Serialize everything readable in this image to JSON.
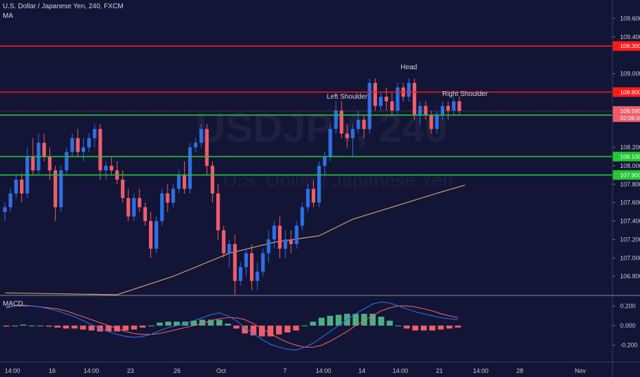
{
  "header": {
    "title": "U.S. Dollar / Japanese Yen, 240, FXCM",
    "indicator": "MA"
  },
  "macd_label": "MACD",
  "watermark": {
    "symbol": "USDJPY, 240",
    "name": "U.S. Dollar / Japanese Yen"
  },
  "colors": {
    "background": "#131536",
    "bull": "#2f6fe4",
    "bear": "#ef5d6a",
    "ma": "#c9a26a",
    "resistance": "#ff1a1a",
    "support": "#22c832",
    "macd_line": "#2f6fe4",
    "signal_line": "#ef5d6a",
    "hist_pos": "#4caf82",
    "hist_neg": "#ef5d6a"
  },
  "chart_data": [
    {
      "type": "candlestick",
      "title": "U.S. Dollar / Japanese Yen, 240, FXCM",
      "ylim": [
        106.6,
        109.8
      ],
      "y_ticks": [
        "109.600",
        "109.400",
        "109.000",
        "108.200",
        "108.000",
        "107.800",
        "107.600",
        "107.400",
        "107.200",
        "107.000",
        "106.800"
      ],
      "x_ticks": [
        "14:00",
        "16",
        "14:00",
        "23",
        "26",
        "Oct",
        "7",
        "14:00",
        "14",
        "14:00",
        "21",
        "14:00",
        "28",
        "Nov"
      ],
      "horizontal_levels": [
        {
          "value": 109.3,
          "label": "109.300",
          "color": "resistance"
        },
        {
          "value": 108.8,
          "label": "108.800",
          "color": "resistance"
        },
        {
          "value": 108.55,
          "label": "108.550",
          "color": "support"
        },
        {
          "value": 108.1,
          "label": "108.100",
          "color": "support"
        },
        {
          "value": 107.9,
          "label": "107.900",
          "color": "support"
        }
      ],
      "last_price": {
        "value": 108.595,
        "label": "108.595",
        "countdown": "02:06:04"
      },
      "annotations": [
        {
          "text": "Left Shoulder",
          "x": 61,
          "price": 108.73
        },
        {
          "text": "Head",
          "x": 72,
          "price": 109.05
        },
        {
          "text": "Right Shoulder",
          "x": 82,
          "price": 108.76
        }
      ],
      "ma_series": [
        {
          "x": 0,
          "y": 106.62
        },
        {
          "x": 20,
          "y": 106.6
        },
        {
          "x": 30,
          "y": 106.8
        },
        {
          "x": 40,
          "y": 107.05
        },
        {
          "x": 48,
          "y": 107.17
        },
        {
          "x": 56,
          "y": 107.24
        },
        {
          "x": 62,
          "y": 107.42
        },
        {
          "x": 70,
          "y": 107.57
        },
        {
          "x": 78,
          "y": 107.72
        },
        {
          "x": 82,
          "y": 107.79
        }
      ],
      "candles": [
        {
          "o": 107.5,
          "h": 107.6,
          "l": 107.4,
          "c": 107.55
        },
        {
          "o": 107.55,
          "h": 107.75,
          "l": 107.5,
          "c": 107.7
        },
        {
          "o": 107.7,
          "h": 107.9,
          "l": 107.65,
          "c": 107.85
        },
        {
          "o": 107.85,
          "h": 107.92,
          "l": 107.6,
          "c": 107.7
        },
        {
          "o": 107.7,
          "h": 108.2,
          "l": 107.65,
          "c": 108.1
        },
        {
          "o": 108.1,
          "h": 108.3,
          "l": 107.9,
          "c": 107.95
        },
        {
          "o": 107.95,
          "h": 108.35,
          "l": 107.9,
          "c": 108.25
        },
        {
          "o": 108.25,
          "h": 108.35,
          "l": 108.05,
          "c": 108.1
        },
        {
          "o": 108.1,
          "h": 108.2,
          "l": 107.85,
          "c": 107.95
        },
        {
          "o": 107.95,
          "h": 108.0,
          "l": 107.4,
          "c": 107.55
        },
        {
          "o": 107.55,
          "h": 108.0,
          "l": 107.5,
          "c": 107.95
        },
        {
          "o": 107.95,
          "h": 108.2,
          "l": 107.9,
          "c": 108.15
        },
        {
          "o": 108.15,
          "h": 108.35,
          "l": 108.1,
          "c": 108.3
        },
        {
          "o": 108.3,
          "h": 108.4,
          "l": 108.1,
          "c": 108.15
        },
        {
          "o": 108.15,
          "h": 108.3,
          "l": 108.05,
          "c": 108.2
        },
        {
          "o": 108.2,
          "h": 108.35,
          "l": 108.15,
          "c": 108.3
        },
        {
          "o": 108.3,
          "h": 108.45,
          "l": 108.2,
          "c": 108.4
        },
        {
          "o": 108.4,
          "h": 108.45,
          "l": 107.85,
          "c": 107.95
        },
        {
          "o": 107.95,
          "h": 108.05,
          "l": 107.85,
          "c": 108.0
        },
        {
          "o": 108.0,
          "h": 108.1,
          "l": 107.9,
          "c": 107.95
        },
        {
          "o": 107.95,
          "h": 108.05,
          "l": 107.8,
          "c": 107.85
        },
        {
          "o": 107.85,
          "h": 107.95,
          "l": 107.6,
          "c": 107.65
        },
        {
          "o": 107.65,
          "h": 107.75,
          "l": 107.4,
          "c": 107.45
        },
        {
          "o": 107.45,
          "h": 107.7,
          "l": 107.4,
          "c": 107.65
        },
        {
          "o": 107.65,
          "h": 107.75,
          "l": 107.5,
          "c": 107.55
        },
        {
          "o": 107.55,
          "h": 107.6,
          "l": 107.35,
          "c": 107.4
        },
        {
          "o": 107.4,
          "h": 107.5,
          "l": 107.0,
          "c": 107.1
        },
        {
          "o": 107.1,
          "h": 107.45,
          "l": 107.05,
          "c": 107.4
        },
        {
          "o": 107.4,
          "h": 107.75,
          "l": 107.35,
          "c": 107.7
        },
        {
          "o": 107.7,
          "h": 107.8,
          "l": 107.5,
          "c": 107.6
        },
        {
          "o": 107.6,
          "h": 107.8,
          "l": 107.55,
          "c": 107.75
        },
        {
          "o": 107.75,
          "h": 107.95,
          "l": 107.7,
          "c": 107.9
        },
        {
          "o": 107.9,
          "h": 108.05,
          "l": 107.7,
          "c": 107.75
        },
        {
          "o": 107.75,
          "h": 108.25,
          "l": 107.7,
          "c": 108.2
        },
        {
          "o": 108.2,
          "h": 108.3,
          "l": 108.15,
          "c": 108.25
        },
        {
          "o": 108.25,
          "h": 108.45,
          "l": 108.2,
          "c": 108.4
        },
        {
          "o": 108.4,
          "h": 108.45,
          "l": 107.9,
          "c": 108.0
        },
        {
          "o": 108.0,
          "h": 108.05,
          "l": 107.6,
          "c": 107.7
        },
        {
          "o": 107.7,
          "h": 107.8,
          "l": 107.2,
          "c": 107.3
        },
        {
          "o": 107.3,
          "h": 107.35,
          "l": 107.0,
          "c": 107.05
        },
        {
          "o": 107.05,
          "h": 107.2,
          "l": 106.9,
          "c": 107.15
        },
        {
          "o": 107.15,
          "h": 107.25,
          "l": 106.6,
          "c": 106.75
        },
        {
          "o": 106.75,
          "h": 106.95,
          "l": 106.7,
          "c": 106.9
        },
        {
          "o": 106.9,
          "h": 107.1,
          "l": 106.8,
          "c": 107.05
        },
        {
          "o": 107.05,
          "h": 107.15,
          "l": 106.65,
          "c": 106.75
        },
        {
          "o": 106.75,
          "h": 106.95,
          "l": 106.65,
          "c": 106.85
        },
        {
          "o": 106.85,
          "h": 107.1,
          "l": 106.8,
          "c": 107.05
        },
        {
          "o": 107.05,
          "h": 107.3,
          "l": 106.95,
          "c": 107.2
        },
        {
          "o": 107.2,
          "h": 107.4,
          "l": 107.1,
          "c": 107.35
        },
        {
          "o": 107.35,
          "h": 107.45,
          "l": 107.0,
          "c": 107.1
        },
        {
          "o": 107.1,
          "h": 107.3,
          "l": 107.0,
          "c": 107.2
        },
        {
          "o": 107.2,
          "h": 107.3,
          "l": 107.05,
          "c": 107.15
        },
        {
          "o": 107.15,
          "h": 107.4,
          "l": 107.1,
          "c": 107.35
        },
        {
          "o": 107.35,
          "h": 107.6,
          "l": 107.3,
          "c": 107.55
        },
        {
          "o": 107.55,
          "h": 107.8,
          "l": 107.5,
          "c": 107.75
        },
        {
          "o": 107.75,
          "h": 107.85,
          "l": 107.55,
          "c": 107.6
        },
        {
          "o": 107.6,
          "h": 108.05,
          "l": 107.55,
          "c": 108.0
        },
        {
          "o": 108.0,
          "h": 108.15,
          "l": 107.9,
          "c": 108.1
        },
        {
          "o": 108.1,
          "h": 108.45,
          "l": 108.05,
          "c": 108.4
        },
        {
          "o": 108.4,
          "h": 108.7,
          "l": 108.35,
          "c": 108.6
        },
        {
          "o": 108.6,
          "h": 108.7,
          "l": 108.3,
          "c": 108.35
        },
        {
          "o": 108.35,
          "h": 108.45,
          "l": 108.2,
          "c": 108.3
        },
        {
          "o": 108.3,
          "h": 108.45,
          "l": 108.1,
          "c": 108.4
        },
        {
          "o": 108.4,
          "h": 108.6,
          "l": 108.35,
          "c": 108.5
        },
        {
          "o": 108.5,
          "h": 108.55,
          "l": 108.3,
          "c": 108.4
        },
        {
          "o": 108.4,
          "h": 108.95,
          "l": 108.35,
          "c": 108.9
        },
        {
          "o": 108.9,
          "h": 108.95,
          "l": 108.6,
          "c": 108.65
        },
        {
          "o": 108.65,
          "h": 108.8,
          "l": 108.6,
          "c": 108.75
        },
        {
          "o": 108.75,
          "h": 108.85,
          "l": 108.6,
          "c": 108.7
        },
        {
          "o": 108.7,
          "h": 108.8,
          "l": 108.55,
          "c": 108.6
        },
        {
          "o": 108.6,
          "h": 108.9,
          "l": 108.55,
          "c": 108.85
        },
        {
          "o": 108.85,
          "h": 108.9,
          "l": 108.7,
          "c": 108.75
        },
        {
          "o": 108.75,
          "h": 108.95,
          "l": 108.7,
          "c": 108.9
        },
        {
          "o": 108.9,
          "h": 108.95,
          "l": 108.5,
          "c": 108.55
        },
        {
          "o": 108.55,
          "h": 108.7,
          "l": 108.45,
          "c": 108.65
        },
        {
          "o": 108.65,
          "h": 108.7,
          "l": 108.5,
          "c": 108.55
        },
        {
          "o": 108.55,
          "h": 108.6,
          "l": 108.35,
          "c": 108.4
        },
        {
          "o": 108.4,
          "h": 108.6,
          "l": 108.35,
          "c": 108.55
        },
        {
          "o": 108.55,
          "h": 108.7,
          "l": 108.5,
          "c": 108.65
        },
        {
          "o": 108.65,
          "h": 108.7,
          "l": 108.5,
          "c": 108.6
        },
        {
          "o": 108.6,
          "h": 108.75,
          "l": 108.55,
          "c": 108.7
        },
        {
          "o": 108.7,
          "h": 108.75,
          "l": 108.55,
          "c": 108.595
        }
      ]
    },
    {
      "type": "macd",
      "title": "MACD",
      "ylim": [
        -0.3,
        0.3
      ],
      "y_ticks": [
        "0.200",
        "0.000",
        "-0.200"
      ],
      "macd": [
        0.18,
        0.2,
        0.21,
        0.2,
        0.19,
        0.17,
        0.15,
        0.12,
        0.09,
        0.05,
        0.01,
        -0.03,
        -0.06,
        -0.09,
        -0.11,
        -0.12,
        -0.11,
        -0.09,
        -0.05,
        -0.02,
        0.0,
        0.02,
        0.05,
        0.08,
        0.11,
        0.13,
        0.1,
        0.05,
        -0.02,
        -0.08,
        -0.14,
        -0.19,
        -0.22,
        -0.24,
        -0.25,
        -0.22,
        -0.18,
        -0.12,
        -0.06,
        0.0,
        0.06,
        0.12,
        0.17,
        0.22,
        0.24,
        0.23,
        0.2,
        0.17,
        0.14,
        0.12,
        0.1,
        0.08,
        0.07,
        0.06
      ],
      "signal": [
        0.19,
        0.2,
        0.2,
        0.2,
        0.19,
        0.18,
        0.17,
        0.15,
        0.12,
        0.09,
        0.06,
        0.03,
        0.0,
        -0.03,
        -0.06,
        -0.08,
        -0.09,
        -0.09,
        -0.08,
        -0.06,
        -0.04,
        -0.02,
        0.0,
        0.02,
        0.05,
        0.07,
        0.08,
        0.08,
        0.06,
        0.02,
        -0.03,
        -0.08,
        -0.13,
        -0.17,
        -0.2,
        -0.22,
        -0.22,
        -0.2,
        -0.16,
        -0.11,
        -0.06,
        0.0,
        0.05,
        0.1,
        0.15,
        0.18,
        0.2,
        0.2,
        0.19,
        0.17,
        0.15,
        0.12,
        0.1,
        0.08
      ]
    }
  ]
}
